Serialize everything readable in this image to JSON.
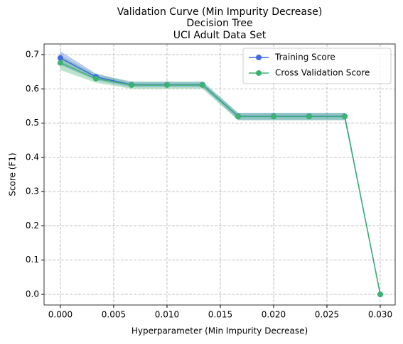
{
  "chart_data": {
    "type": "line",
    "title": "Validation Curve (Min Impurity Decrease)",
    "subtitle": [
      "Decision Tree",
      "UCI Adult Data Set"
    ],
    "x_label": "Hyperparameter (Min Impurity Decrease)",
    "y_label": "Score (F1)",
    "x": [
      0,
      0.00333,
      0.00667,
      0.01,
      0.01333,
      0.01667,
      0.02,
      0.02333,
      0.02667,
      0.03
    ],
    "series": [
      {
        "name": "Training Score",
        "color": "#4169e1",
        "values": [
          0.69,
          0.635,
          0.612,
          0.612,
          0.612,
          0.52,
          0.52,
          0.52,
          0.52,
          0.0
        ],
        "band_lower": [
          0.67,
          0.625,
          0.605,
          0.605,
          0.605,
          0.51,
          0.51,
          0.51,
          0.51,
          0.0
        ],
        "band_upper": [
          0.71,
          0.645,
          0.619,
          0.619,
          0.619,
          0.53,
          0.53,
          0.53,
          0.53,
          0.0
        ]
      },
      {
        "name": "Cross Validation Score",
        "color": "#3cb371",
        "values": [
          0.676,
          0.63,
          0.611,
          0.611,
          0.611,
          0.519,
          0.519,
          0.519,
          0.519,
          0.0
        ],
        "band_lower": [
          0.655,
          0.618,
          0.6,
          0.6,
          0.6,
          0.508,
          0.508,
          0.508,
          0.508,
          0.0
        ],
        "band_upper": [
          0.697,
          0.642,
          0.622,
          0.622,
          0.622,
          0.53,
          0.53,
          0.53,
          0.53,
          0.0
        ]
      }
    ],
    "xlim": [
      -0.00153,
      0.0314
    ],
    "ylim": [
      -0.031,
      0.731
    ],
    "xticks": [
      {
        "value": 0,
        "label": "0.000"
      },
      {
        "value": 0.005,
        "label": "0.005"
      },
      {
        "value": 0.01,
        "label": "0.010"
      },
      {
        "value": 0.015,
        "label": "0.015"
      },
      {
        "value": 0.02,
        "label": "0.020"
      },
      {
        "value": 0.025,
        "label": "0.025"
      },
      {
        "value": 0.03,
        "label": "0.030"
      }
    ],
    "yticks": [
      {
        "value": 0,
        "label": "0.0"
      },
      0.1,
      0.2,
      0.3,
      0.4,
      0.5,
      0.6,
      0.7
    ],
    "grid": true,
    "legend": "upper right"
  }
}
